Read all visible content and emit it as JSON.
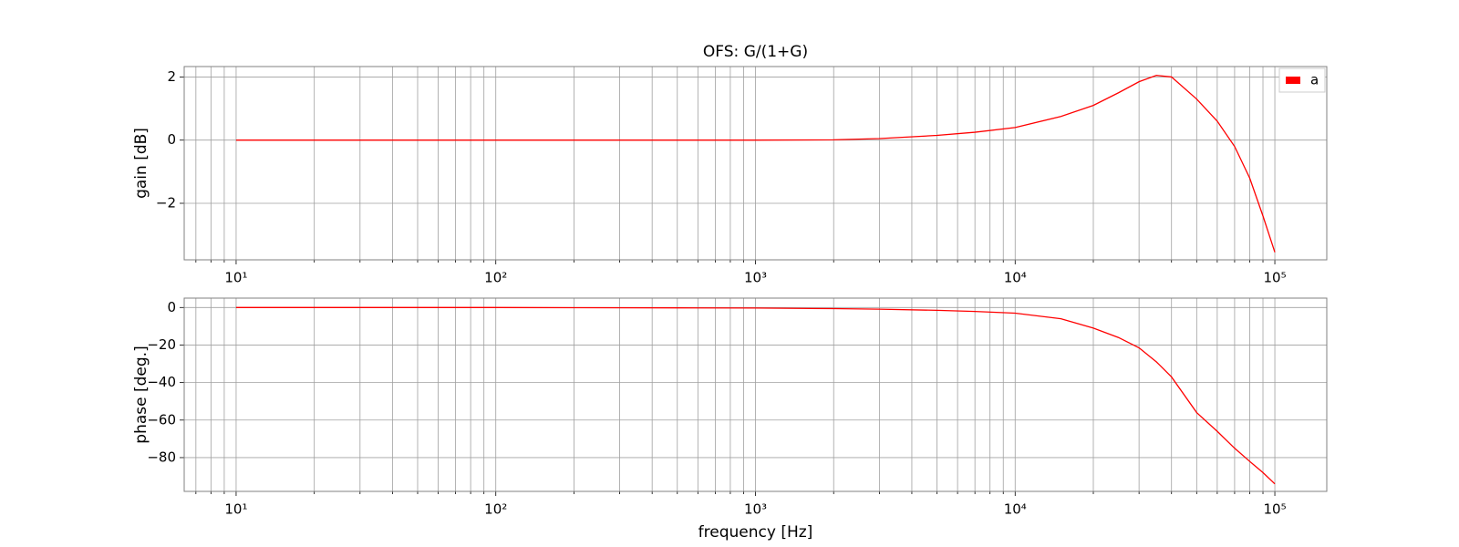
{
  "chart_data": [
    {
      "type": "line",
      "title": "OFS: G/(1+G)",
      "y_label": "gain [dB]",
      "xscale": "log",
      "grid": true,
      "legend": "upper right",
      "x": [
        10,
        20,
        50,
        100,
        200,
        500,
        1000,
        2000,
        3000,
        5000,
        7000,
        10000,
        15000,
        20000,
        25000,
        30000,
        35000,
        40000,
        50000,
        60000,
        70000,
        80000,
        90000,
        100000
      ],
      "series": [
        {
          "name": "a",
          "color": "#ff0000",
          "values": [
            0,
            0,
            0,
            0,
            0,
            0,
            0,
            0.01,
            0.05,
            0.15,
            0.25,
            0.4,
            0.75,
            1.1,
            1.5,
            1.85,
            2.05,
            2.0,
            1.3,
            0.6,
            -0.2,
            -1.2,
            -2.4,
            -3.55
          ]
        }
      ],
      "xlim": [
        6.31,
        158489
      ],
      "ylim": [
        -3.79,
        2.33
      ],
      "xticks": [
        {
          "value": 10,
          "label": "10¹"
        },
        {
          "value": 100,
          "label": "10²"
        },
        {
          "value": 1000,
          "label": "10³"
        },
        {
          "value": 10000,
          "label": "10⁴"
        },
        {
          "value": 100000,
          "label": "10⁵"
        }
      ],
      "xminorticks": [
        7,
        8,
        9,
        20,
        30,
        40,
        50,
        60,
        70,
        80,
        90,
        200,
        300,
        400,
        500,
        600,
        700,
        800,
        900,
        2000,
        3000,
        4000,
        5000,
        6000,
        7000,
        8000,
        9000,
        20000,
        30000,
        40000,
        50000,
        60000,
        70000,
        80000,
        90000
      ],
      "yticks": [
        {
          "value": -2,
          "label": "−2"
        },
        0,
        2
      ]
    },
    {
      "type": "line",
      "x_label": "frequency [Hz]",
      "y_label": "phase [deg.]",
      "xscale": "log",
      "grid": true,
      "x": [
        10,
        20,
        50,
        100,
        200,
        500,
        1000,
        2000,
        3000,
        5000,
        7000,
        10000,
        15000,
        20000,
        25000,
        30000,
        35000,
        40000,
        50000,
        60000,
        70000,
        80000,
        90000,
        100000
      ],
      "series": [
        {
          "name": "a",
          "color": "#ff0000",
          "values": [
            0,
            0,
            0,
            0,
            -0.1,
            -0.2,
            -0.3,
            -0.6,
            -0.9,
            -1.5,
            -2.1,
            -3,
            -6,
            -11,
            -16,
            -21.5,
            -29,
            -37,
            -56,
            -66,
            -75,
            -82,
            -88,
            -94
          ]
        }
      ],
      "xlim": [
        6.31,
        158489
      ],
      "ylim": [
        -98,
        5
      ],
      "xticks": [
        {
          "value": 10,
          "label": "10¹"
        },
        {
          "value": 100,
          "label": "10²"
        },
        {
          "value": 1000,
          "label": "10³"
        },
        {
          "value": 10000,
          "label": "10⁴"
        },
        {
          "value": 100000,
          "label": "10⁵"
        }
      ],
      "xminorticks": [
        7,
        8,
        9,
        20,
        30,
        40,
        50,
        60,
        70,
        80,
        90,
        200,
        300,
        400,
        500,
        600,
        700,
        800,
        900,
        2000,
        3000,
        4000,
        5000,
        6000,
        7000,
        8000,
        9000,
        20000,
        30000,
        40000,
        50000,
        60000,
        70000,
        80000,
        90000
      ],
      "yticks": [
        {
          "value": -80,
          "label": "−80"
        },
        {
          "value": -60,
          "label": "−60"
        },
        {
          "value": -40,
          "label": "−40"
        },
        {
          "value": -20,
          "label": "−20"
        },
        0
      ]
    }
  ]
}
